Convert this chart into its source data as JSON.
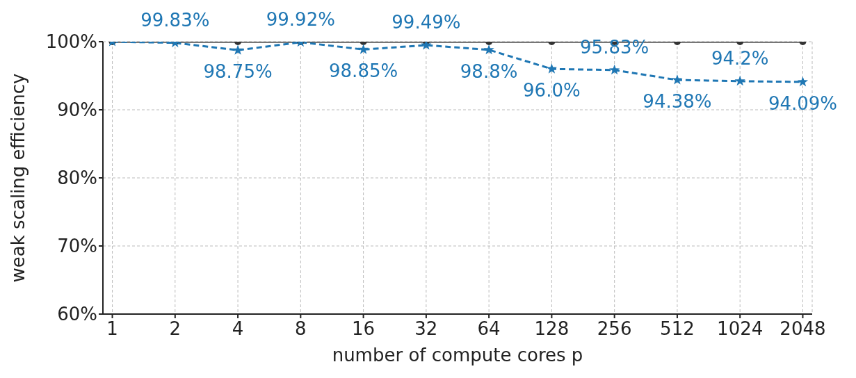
{
  "chart_data": {
    "type": "line",
    "xlabel": "number of compute cores p",
    "ylabel": "weak scaling efficiency",
    "categories": [
      "1",
      "2",
      "4",
      "8",
      "16",
      "32",
      "64",
      "128",
      "256",
      "512",
      "1024",
      "2048"
    ],
    "series": [
      {
        "color": "#333333",
        "marker": "circle",
        "line_style": "solid",
        "values": [
          100,
          100,
          100,
          100,
          100,
          100,
          100,
          100,
          100,
          100,
          100,
          100
        ]
      },
      {
        "color": "#1f77b4",
        "marker": "star",
        "line_style": "dashed",
        "values": [
          100,
          99.83,
          98.75,
          99.92,
          98.85,
          99.49,
          98.8,
          96.0,
          95.83,
          94.38,
          94.2,
          94.09
        ],
        "value_labels": [
          null,
          "99.83%",
          "98.75%",
          "99.92%",
          "98.85%",
          "99.49%",
          "98.8%",
          "96.0%",
          "95.83%",
          "94.38%",
          "94.2%",
          "94.09%"
        ]
      }
    ],
    "ylim": [
      60,
      100
    ],
    "yticks": [
      {
        "value": 60,
        "label": "60%"
      },
      {
        "value": 70,
        "label": "70%"
      },
      {
        "value": 80,
        "label": "80%"
      },
      {
        "value": 90,
        "label": "90%"
      },
      {
        "value": 100,
        "label": "100%"
      }
    ],
    "grid": true
  }
}
